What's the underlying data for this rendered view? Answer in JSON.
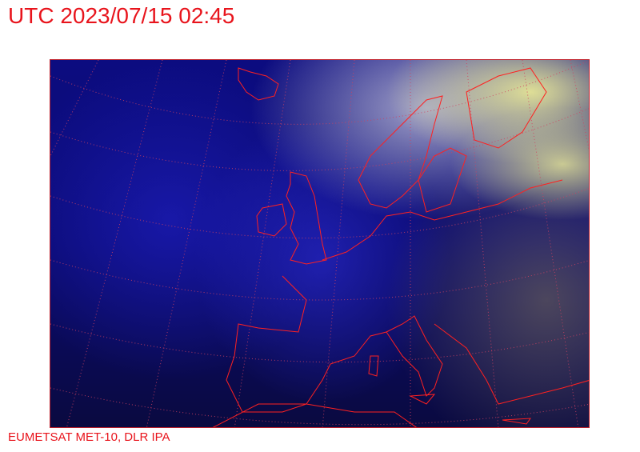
{
  "header": {
    "title": "UTC 2023/07/15 02:45"
  },
  "map": {
    "type": "satellite-composite",
    "region": "Europe / North Atlantic",
    "coastline_color": "#ff2020",
    "graticule_color": "#d04060",
    "graticule_style": "dotted"
  },
  "footer": {
    "credit": "EUMETSAT MET-10, DLR IPA"
  }
}
